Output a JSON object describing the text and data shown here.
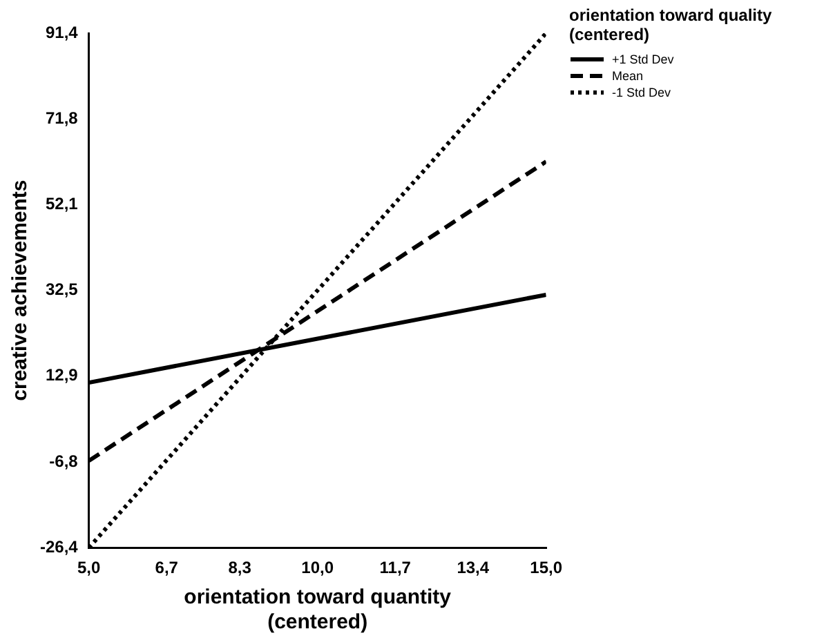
{
  "chart_data": {
    "type": "line",
    "xlabel": "orientation toward quantity (centered)",
    "ylabel": "creative achievements",
    "legend_title": "orientation toward quality (centered)",
    "legend": "top right",
    "marker": "none",
    "grid": false,
    "x": [
      5,
      15
    ],
    "xlim": [
      5,
      15
    ],
    "xticks": [
      {
        "value": 5,
        "label": "5,0"
      },
      {
        "value": 6.7,
        "label": "6,7"
      },
      {
        "value": 8.3,
        "label": "8,3"
      },
      {
        "value": 10,
        "label": "10,0"
      },
      {
        "value": 11.7,
        "label": "11,7"
      },
      {
        "value": 13.4,
        "label": "13,4"
      },
      {
        "value": 15,
        "label": "15,0"
      }
    ],
    "ylim": [
      -26.4,
      91.4
    ],
    "yticks": [
      {
        "value": -26.4,
        "label": "-26,4"
      },
      {
        "value": -6.8,
        "label": "-6,8"
      },
      {
        "value": 12.9,
        "label": "12,9"
      },
      {
        "value": 32.5,
        "label": "32,5"
      },
      {
        "value": 52.1,
        "label": "52,1"
      },
      {
        "value": 71.8,
        "label": "71,8"
      },
      {
        "value": 91.4,
        "label": "91,4"
      }
    ],
    "series": [
      {
        "name": "+1 Std Dev",
        "color": "#000000",
        "line_style": "solid",
        "values": [
          11.4,
          31.5
        ]
      },
      {
        "name": "Mean",
        "color": "#000000",
        "line_style": "dashed",
        "values": [
          -6.5,
          62
        ]
      },
      {
        "name": "-1 Std Dev",
        "color": "#000000",
        "line_style": "dotted",
        "values": [
          -26.4,
          91.4
        ]
      }
    ]
  }
}
